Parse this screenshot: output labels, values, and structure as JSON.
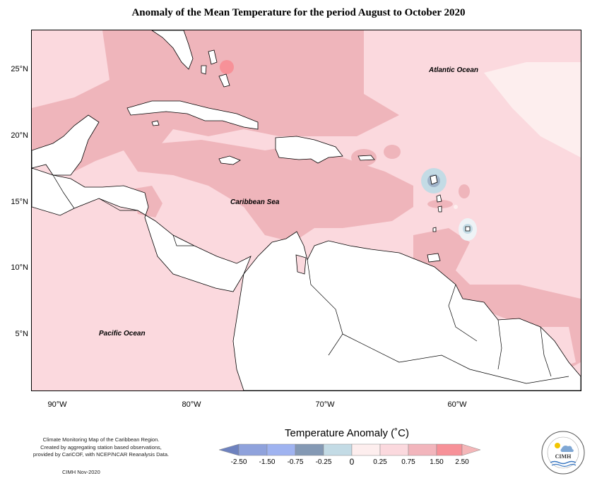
{
  "title": "Anomaly of the Mean Temperature for the period August to October 2020",
  "lat_labels": [
    "25°N",
    "20°N",
    "15°N",
    "10°N",
    "5°N"
  ],
  "lon_labels": [
    "90°W",
    "80°W",
    "70°W",
    "60°W"
  ],
  "ocean_labels": {
    "atlantic": "Atlantic Ocean",
    "caribbean": "Caribbean Sea",
    "pacific": "Pacific Ocean"
  },
  "note": {
    "line1": "Climate Monitoring Map of the Caribbean Region.",
    "line2": "Created by aggregating station based observations,",
    "line3": "provided by CariCOF, with NCEP/NCAR Reanalysis Data.",
    "credit": "CIMH Nov-2020"
  },
  "legend": {
    "title": "Temperature Anomaly (˚C)",
    "ticks": [
      "-2.50",
      "-1.50",
      "-0.75",
      "-0.25",
      "0",
      "0.25",
      "0.75",
      "1.50",
      "2.50"
    ],
    "colors": [
      "#6e82bf",
      "#8fa2dc",
      "#9fb3f0",
      "#8499b4",
      "#c3dbe5",
      "#fdeeee",
      "#fbd9de",
      "#f2b5bc",
      "#f79198",
      "#f4b6b8"
    ]
  },
  "logo_text": "CIMH"
}
